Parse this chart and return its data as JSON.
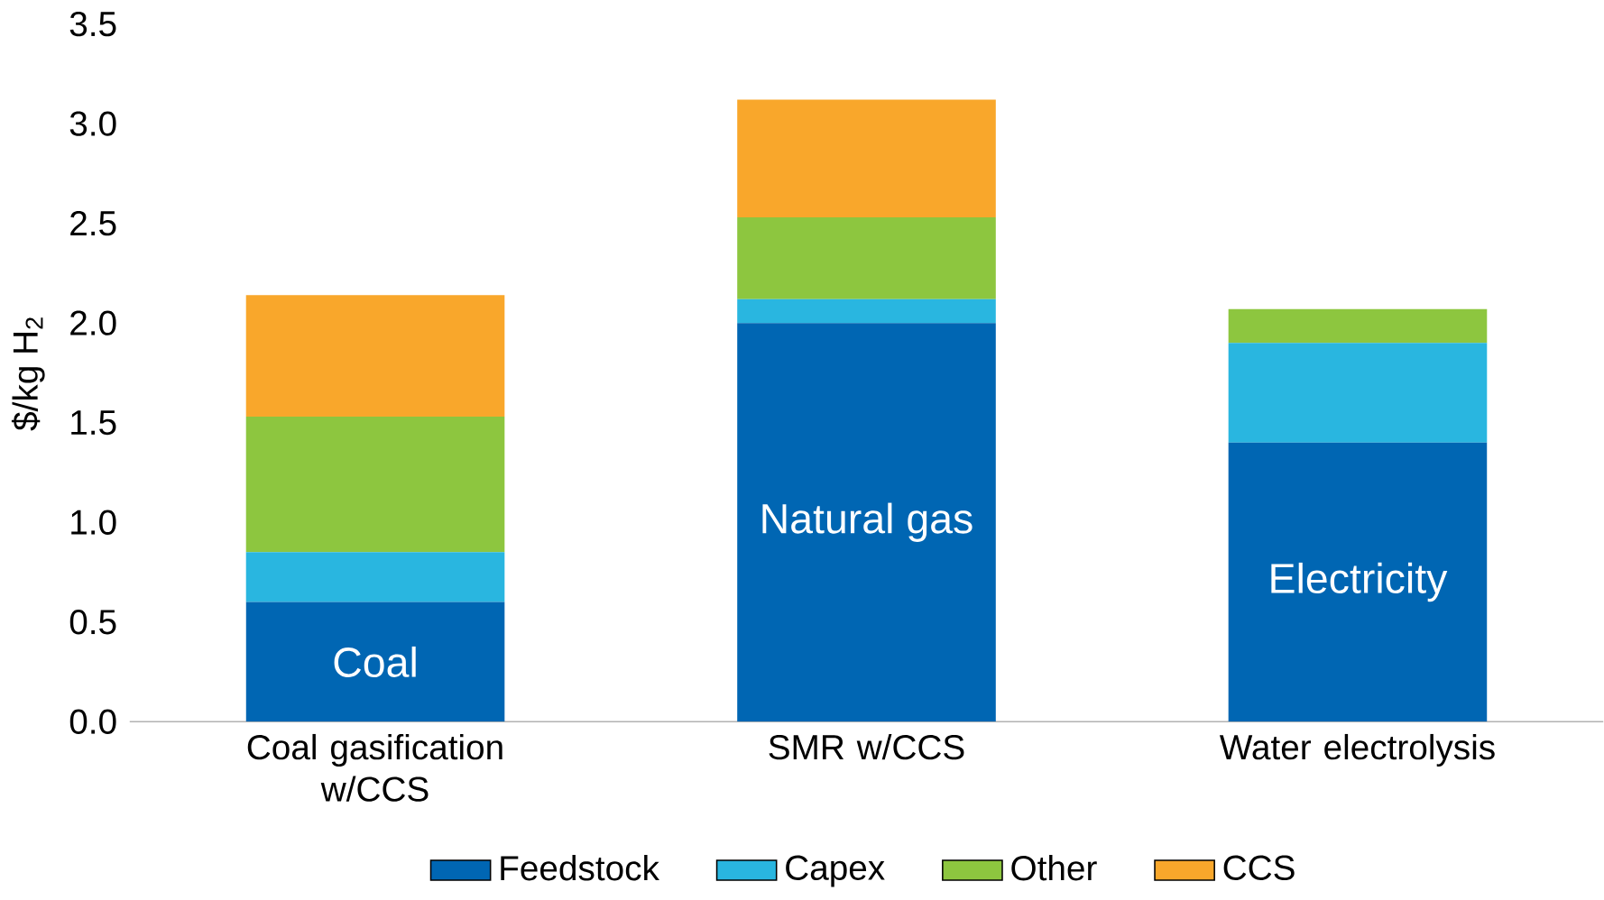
{
  "chart_data": {
    "type": "bar",
    "stacked": true,
    "ylabel": "$/kg H$_{2}$",
    "categories": [
      "Coal gasification w/CCS",
      "SMR w/CCS",
      "Water electrolysis"
    ],
    "series": [
      {
        "name": "Feedstock",
        "color": "#0066b3",
        "values": [
          0.6,
          2.0,
          1.4
        ]
      },
      {
        "name": "Capex",
        "color": "#29b6e0",
        "values": [
          0.25,
          0.12,
          0.5
        ]
      },
      {
        "name": "Other",
        "color": "#8dc63f",
        "values": [
          0.68,
          0.41,
          0.17
        ]
      },
      {
        "name": "CCS",
        "color": "#f9a72b",
        "values": [
          0.61,
          0.59,
          0
        ]
      }
    ],
    "ylim": [
      0,
      3.5
    ],
    "yticks": [
      {
        "value": 0,
        "label": "0.0"
      },
      {
        "value": 0.5,
        "label": "0.5"
      },
      {
        "value": 1,
        "label": "1.0"
      },
      {
        "value": 1.5,
        "label": "1.5"
      },
      {
        "value": 2,
        "label": "2.0"
      },
      {
        "value": 2.5,
        "label": "2.5"
      },
      {
        "value": 3,
        "label": "3.0"
      },
      {
        "value": 3.5,
        "label": "3.5"
      }
    ],
    "annotations": [
      "Coal",
      "Natural gas",
      "Electricity"
    ],
    "legend": "bottom",
    "grid": false
  }
}
